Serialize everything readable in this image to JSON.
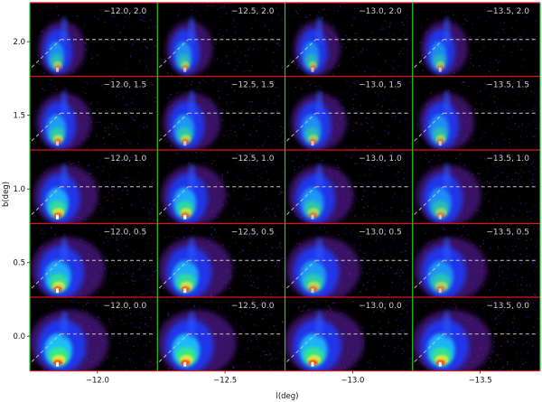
{
  "chart_data": {
    "type": "heatmap",
    "title": "",
    "xlabel": "l(deg)",
    "ylabel": "b(deg)",
    "columns": [
      "-12.0",
      "-12.5",
      "-13.0",
      "-13.5"
    ],
    "rows": [
      "2.0",
      "1.5",
      "1.0",
      "0.5",
      "0.0"
    ],
    "x_tick_labels": [
      "−12.0",
      "−12.5",
      "−13.0",
      "−13.5"
    ],
    "y_tick_labels": [
      "2.0",
      "1.5",
      "1.0",
      "0.5",
      "0.0"
    ],
    "panels": [
      {
        "label": "−12.0, 2.0",
        "l": -12.0,
        "b": 2.0,
        "intensity": 0.55,
        "spread": 0.3
      },
      {
        "label": "−12.5, 2.0",
        "l": -12.5,
        "b": 2.0,
        "intensity": 0.55,
        "spread": 0.3
      },
      {
        "label": "−13.0, 2.0",
        "l": -13.0,
        "b": 2.0,
        "intensity": 0.5,
        "spread": 0.3
      },
      {
        "label": "−13.5, 2.0",
        "l": -13.5,
        "b": 2.0,
        "intensity": 0.5,
        "spread": 0.3
      },
      {
        "label": "−12.0, 1.5",
        "l": -12.0,
        "b": 1.5,
        "intensity": 0.65,
        "spread": 0.42
      },
      {
        "label": "−12.5, 1.5",
        "l": -12.5,
        "b": 1.5,
        "intensity": 0.62,
        "spread": 0.45
      },
      {
        "label": "−13.0, 1.5",
        "l": -13.0,
        "b": 1.5,
        "intensity": 0.55,
        "spread": 0.42
      },
      {
        "label": "−13.5, 1.5",
        "l": -13.5,
        "b": 1.5,
        "intensity": 0.55,
        "spread": 0.42
      },
      {
        "label": "−12.0, 1.0",
        "l": -12.0,
        "b": 1.0,
        "intensity": 0.8,
        "spread": 0.55
      },
      {
        "label": "−12.5, 1.0",
        "l": -12.5,
        "b": 1.0,
        "intensity": 0.75,
        "spread": 0.55
      },
      {
        "label": "−13.0, 1.0",
        "l": -13.0,
        "b": 1.0,
        "intensity": 0.62,
        "spread": 0.55
      },
      {
        "label": "−13.5, 1.0",
        "l": -13.5,
        "b": 1.0,
        "intensity": 0.55,
        "spread": 0.55
      },
      {
        "label": "−12.0, 0.5",
        "l": -12.0,
        "b": 0.5,
        "intensity": 0.78,
        "spread": 0.68
      },
      {
        "label": "−12.5, 0.5",
        "l": -12.5,
        "b": 0.5,
        "intensity": 0.78,
        "spread": 0.68
      },
      {
        "label": "−13.0, 0.5",
        "l": -13.0,
        "b": 0.5,
        "intensity": 0.65,
        "spread": 0.68
      },
      {
        "label": "−13.5, 0.5",
        "l": -13.5,
        "b": 0.5,
        "intensity": 0.6,
        "spread": 0.66
      },
      {
        "label": "−12.0, 0.0",
        "l": -12.0,
        "b": 0.0,
        "intensity": 0.92,
        "spread": 0.75
      },
      {
        "label": "−12.5, 0.0",
        "l": -12.5,
        "b": 0.0,
        "intensity": 0.9,
        "spread": 0.75
      },
      {
        "label": "−13.0, 0.0",
        "l": -13.0,
        "b": 0.0,
        "intensity": 0.85,
        "spread": 0.75
      },
      {
        "label": "−13.5, 0.0",
        "l": -13.5,
        "b": 0.0,
        "intensity": 0.85,
        "spread": 0.75
      }
    ],
    "colors": {
      "panel_background": "#000000",
      "row_divider": "#e0101a",
      "column_divider": "#28c828",
      "reference_line": "#c8c8c8",
      "panel_label": "#cfcfcf"
    }
  }
}
